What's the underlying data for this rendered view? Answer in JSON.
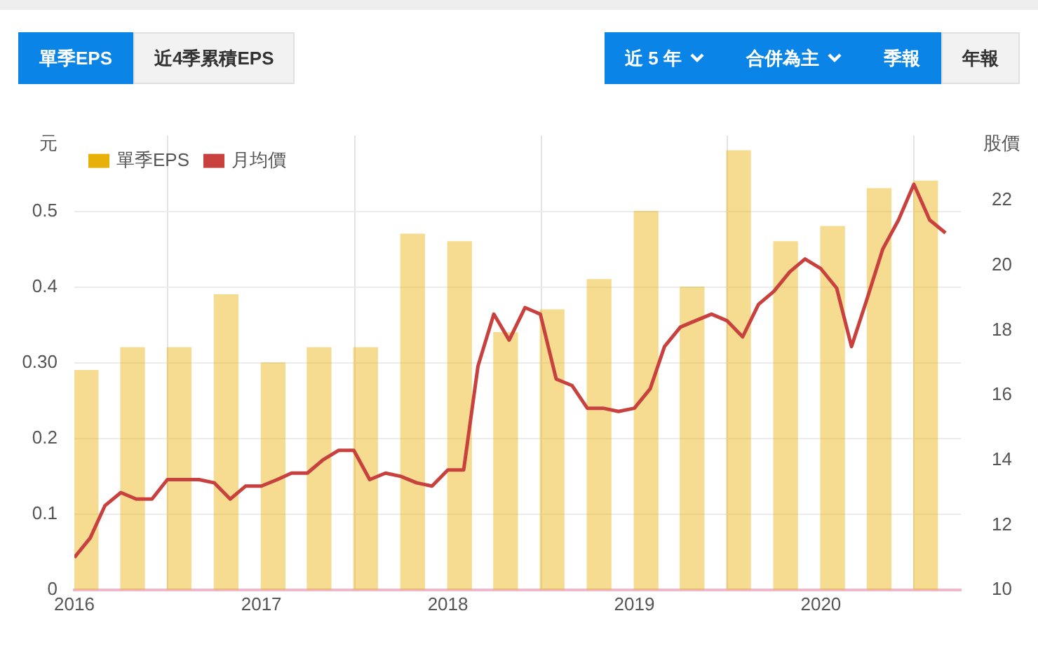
{
  "chart_data": {
    "type": "bar",
    "ylabel": "元",
    "y2label": "股價",
    "annotations": [
      "單季EPS",
      "近4季累積EPS",
      "近 5 年",
      "合併為主",
      "季報",
      "年報"
    ],
    "xlim": [
      "2016-01",
      "2020-10"
    ],
    "xticks": [
      "2016",
      "2017",
      "2018",
      "2019",
      "2020"
    ],
    "ylim": [
      0,
      0.6
    ],
    "yticks": [
      0,
      0.1,
      0.2,
      {
        "value": 0.3,
        "label": "0.30"
      },
      0.4,
      0.5
    ],
    "y2lim": [
      10,
      24
    ],
    "y2ticks": [
      10,
      12,
      14,
      16,
      18,
      20,
      22
    ],
    "grid": true,
    "legend": "top left",
    "series": [
      {
        "name": "單季EPS",
        "color": "#e8b10a",
        "x": [
          "2016-01-24",
          "2016-04-24",
          "2016-07-24",
          "2016-10-24",
          "2017-01-24",
          "2017-04-24",
          "2017-07-24",
          "2017-10-24",
          "2018-01-24",
          "2018-04-24",
          "2018-07-24",
          "2018-10-24",
          "2019-01-24",
          "2019-04-24",
          "2019-07-24",
          "2019-10-24",
          "2020-01-24",
          "2020-04-24",
          "2020-07-24"
        ],
        "values": [
          0.29,
          0.32,
          0.32,
          0.39,
          0.3,
          0.32,
          0.32,
          0.47,
          0.46,
          0.34,
          0.37,
          0.41,
          0.5,
          0.4,
          0.58,
          0.46,
          0.48,
          0.53,
          0.54
        ]
      },
      {
        "name": "月均價",
        "type": "line",
        "axis": "y2",
        "color": "#c9413f",
        "x": [
          "2016-01",
          "2016-02",
          "2016-03",
          "2016-04",
          "2016-05",
          "2016-06",
          "2016-07",
          "2016-08",
          "2016-09",
          "2016-10",
          "2016-11",
          "2016-12",
          "2017-01",
          "2017-02",
          "2017-03",
          "2017-04",
          "2017-05",
          "2017-06",
          "2017-07",
          "2017-08",
          "2017-09",
          "2017-10",
          "2017-11",
          "2017-12",
          "2018-01",
          "2018-02",
          "2018-03",
          "2018-04",
          "2018-05",
          "2018-06",
          "2018-07",
          "2018-08",
          "2018-09",
          "2018-10",
          "2018-11",
          "2018-12",
          "2019-01",
          "2019-02",
          "2019-03",
          "2019-04",
          "2019-05",
          "2019-06",
          "2019-07",
          "2019-08",
          "2019-09",
          "2019-10",
          "2019-11",
          "2019-12",
          "2020-01",
          "2020-02",
          "2020-03",
          "2020-04",
          "2020-05",
          "2020-06",
          "2020-07",
          "2020-08",
          "2020-09"
        ],
        "values": [
          11.0,
          11.6,
          12.6,
          13.0,
          12.8,
          12.8,
          13.4,
          13.4,
          13.4,
          13.3,
          12.8,
          13.2,
          13.2,
          13.4,
          13.6,
          13.6,
          14.0,
          14.3,
          14.3,
          13.4,
          13.6,
          13.5,
          13.3,
          13.2,
          13.7,
          13.7,
          16.9,
          18.5,
          17.7,
          18.7,
          18.5,
          16.5,
          16.3,
          15.6,
          15.6,
          15.5,
          15.6,
          16.2,
          17.5,
          18.1,
          18.3,
          18.5,
          18.3,
          17.8,
          18.8,
          19.2,
          19.8,
          20.2,
          19.9,
          19.3,
          17.5,
          19.0,
          20.5,
          21.4,
          22.5,
          21.4,
          21.0
        ]
      }
    ]
  }
}
